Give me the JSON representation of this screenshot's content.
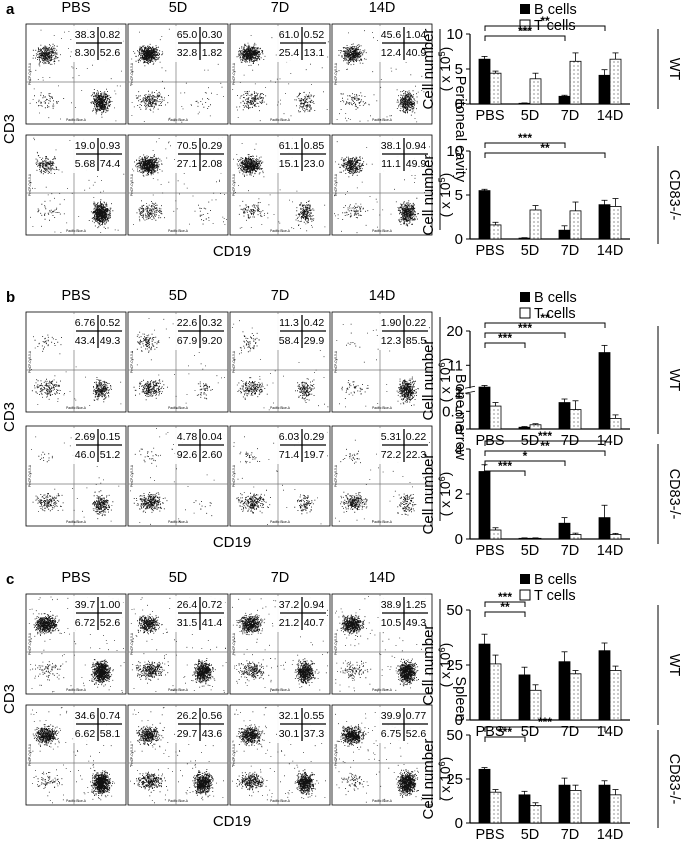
{
  "figure": {
    "common": {
      "x_axis_label": "CD19",
      "y_axis_label": "CD3",
      "timepoints": [
        "PBS",
        "5D",
        "7D",
        "14D"
      ],
      "bar_ylabel_main": "Cell number",
      "legend": {
        "b": "B cells",
        "t": "T cells"
      },
      "genotypes": [
        "WT",
        "CD83-/-"
      ]
    },
    "panels": [
      {
        "letter": "a",
        "tissue": "Peritoneal cavity",
        "bar_unit": "( x 10",
        "bar_unit_exp": "5",
        "flow_values": [
          [
            [
              "38.3",
              "0.82",
              "8.30",
              "52.6"
            ],
            [
              "65.0",
              "0.30",
              "32.8",
              "1.82"
            ],
            [
              "61.0",
              "0.52",
              "25.4",
              "13.1"
            ],
            [
              "45.6",
              "1.04",
              "12.4",
              "40.9"
            ]
          ],
          [
            [
              "19.0",
              "0.93",
              "5.68",
              "74.4"
            ],
            [
              "70.5",
              "0.29",
              "27.1",
              "2.08"
            ],
            [
              "61.1",
              "0.85",
              "15.1",
              "23.0"
            ],
            [
              "38.1",
              "0.94",
              "11.1",
              "49.9"
            ]
          ]
        ],
        "significance": [
          [
            {
              "from": 0,
              "to": 3,
              "stars": "**"
            },
            {
              "from": 0,
              "to": 2,
              "stars": "***"
            }
          ],
          [
            {
              "from": 0,
              "to": 2,
              "stars": "***"
            },
            {
              "from": 0,
              "to": 3,
              "stars": "**"
            }
          ]
        ]
      },
      {
        "letter": "b",
        "tissue": "Bone marrow",
        "bar_unit": "( x 10",
        "bar_unit_exp": "6",
        "flow_values": [
          [
            [
              "6.76",
              "0.52",
              "43.4",
              "49.3"
            ],
            [
              "22.6",
              "0.32",
              "67.9",
              "9.20"
            ],
            [
              "11.3",
              "0.42",
              "58.4",
              "29.9"
            ],
            [
              "1.90",
              "0.22",
              "12.3",
              "85.5"
            ]
          ],
          [
            [
              "2.69",
              "0.15",
              "46.0",
              "51.2"
            ],
            [
              "4.78",
              "0.04",
              "92.6",
              "2.60"
            ],
            [
              "6.03",
              "0.29",
              "71.4",
              "19.7"
            ],
            [
              "5.31",
              "0.22",
              "72.2",
              "22.3"
            ]
          ]
        ],
        "significance": [
          [
            {
              "from": 0,
              "to": 3,
              "stars": "**"
            },
            {
              "from": 0,
              "to": 2,
              "stars": "***"
            },
            {
              "from": 0,
              "to": 1,
              "stars": "***"
            }
          ],
          [
            {
              "from": 0,
              "to": 3,
              "stars": "***"
            },
            {
              "from": 0,
              "to": 3,
              "stars": "**"
            },
            {
              "from": 0,
              "to": 2,
              "stars": "*"
            },
            {
              "from": 0,
              "to": 1,
              "stars": "***"
            }
          ]
        ]
      },
      {
        "letter": "c",
        "tissue": "Spleen",
        "bar_unit": "( x 10",
        "bar_unit_exp": "6",
        "flow_values": [
          [
            [
              "39.7",
              "1.00",
              "6.72",
              "52.6"
            ],
            [
              "26.4",
              "0.72",
              "31.5",
              "41.4"
            ],
            [
              "37.2",
              "0.94",
              "21.2",
              "40.7"
            ],
            [
              "38.9",
              "1.25",
              "10.5",
              "49.3"
            ]
          ],
          [
            [
              "34.6",
              "0.74",
              "6.62",
              "58.1"
            ],
            [
              "26.2",
              "0.56",
              "29.7",
              "43.6"
            ],
            [
              "32.1",
              "0.55",
              "30.1",
              "37.3"
            ],
            [
              "39.9",
              "0.77",
              "6.75",
              "52.6"
            ]
          ]
        ],
        "significance": [
          [
            {
              "from": 0,
              "to": 1,
              "stars": "***"
            },
            {
              "from": 0,
              "to": 1,
              "stars": "**"
            }
          ],
          [
            {
              "from": 0,
              "to": 3,
              "stars": "***"
            },
            {
              "from": 0,
              "to": 1,
              "stars": "***"
            }
          ]
        ]
      }
    ]
  },
  "chart_data": [
    {
      "type": "bar",
      "panel": "a",
      "genotype": "WT",
      "categories": [
        "PBS",
        "5D",
        "7D",
        "14D"
      ],
      "series": [
        {
          "name": "B cells",
          "values": [
            6.4,
            0.1,
            1.1,
            4.1
          ],
          "errors": [
            0.4,
            0.05,
            0.15,
            0.8
          ]
        },
        {
          "name": "T cells",
          "values": [
            4.4,
            3.6,
            6.1,
            6.4
          ],
          "errors": [
            0.3,
            0.8,
            1.2,
            0.9
          ]
        }
      ],
      "ylim": [
        0,
        10
      ],
      "yticks": [
        "0",
        "5",
        "10"
      ],
      "ylabel": "Cell number"
    },
    {
      "type": "bar",
      "panel": "a",
      "genotype": "CD83-/-",
      "categories": [
        "PBS",
        "5D",
        "7D",
        "14D"
      ],
      "series": [
        {
          "name": "B cells",
          "values": [
            5.5,
            0.1,
            1.0,
            3.9
          ],
          "errors": [
            0.15,
            0.05,
            0.5,
            0.5
          ]
        },
        {
          "name": "T cells",
          "values": [
            1.6,
            3.3,
            3.2,
            3.7
          ],
          "errors": [
            0.3,
            0.5,
            1.0,
            0.9
          ]
        }
      ],
      "ylim": [
        0,
        10
      ],
      "yticks": [
        "0",
        "5",
        "10"
      ],
      "ylabel": "Cell number"
    },
    {
      "type": "bar",
      "panel": "b",
      "genotype": "WT",
      "broken_axis": true,
      "categories": [
        "PBS",
        "5D",
        "7D",
        "14D"
      ],
      "series": [
        {
          "name": "B cells",
          "values": [
            3.0,
            0.05,
            0.75,
            14.0
          ],
          "errors": [
            0.6,
            0.02,
            0.1,
            2.0
          ]
        },
        {
          "name": "T cells",
          "values": [
            0.65,
            0.12,
            0.55,
            0.3
          ],
          "errors": [
            0.1,
            0.03,
            0.25,
            0.1
          ]
        }
      ],
      "yticks": [
        "0",
        "0.5",
        "1",
        "2",
        "11",
        "20"
      ],
      "ylabel": "Cell number"
    },
    {
      "type": "bar",
      "panel": "b",
      "genotype": "CD83-/-",
      "categories": [
        "PBS",
        "5D",
        "7D",
        "14D"
      ],
      "series": [
        {
          "name": "B cells",
          "values": [
            3.0,
            0.03,
            0.7,
            0.95
          ],
          "errors": [
            0.3,
            0.02,
            0.25,
            0.55
          ]
        },
        {
          "name": "T cells",
          "values": [
            0.4,
            0.03,
            0.2,
            0.2
          ],
          "errors": [
            0.1,
            0.02,
            0.06,
            0.05
          ]
        }
      ],
      "ylim": [
        0,
        4
      ],
      "yticks": [
        "0",
        "2",
        "4"
      ],
      "ylabel": "Cell number"
    },
    {
      "type": "bar",
      "panel": "c",
      "genotype": "WT",
      "categories": [
        "PBS",
        "5D",
        "7D",
        "14D"
      ],
      "series": [
        {
          "name": "B cells",
          "values": [
            34.5,
            20.5,
            26.5,
            31.5
          ],
          "errors": [
            4.5,
            3.5,
            4.5,
            3.5
          ]
        },
        {
          "name": "T cells",
          "values": [
            25.5,
            13.5,
            21.0,
            22.5
          ],
          "errors": [
            4.0,
            2.5,
            1.5,
            2.0
          ]
        }
      ],
      "ylim": [
        0,
        50
      ],
      "yticks": [
        "0",
        "25",
        "50"
      ],
      "ylabel": "Cell number"
    },
    {
      "type": "bar",
      "panel": "c",
      "genotype": "CD83-/-",
      "categories": [
        "PBS",
        "5D",
        "7D",
        "14D"
      ],
      "series": [
        {
          "name": "B cells",
          "values": [
            30.5,
            16.0,
            21.5,
            21.5
          ],
          "errors": [
            1.0,
            2.0,
            4.0,
            2.5
          ]
        },
        {
          "name": "T cells",
          "values": [
            17.5,
            10.0,
            18.5,
            16.0
          ],
          "errors": [
            1.5,
            1.5,
            3.0,
            3.0
          ]
        }
      ],
      "ylim": [
        0,
        50
      ],
      "yticks": [
        "0",
        "25",
        "50"
      ],
      "ylabel": "Cell number"
    }
  ]
}
